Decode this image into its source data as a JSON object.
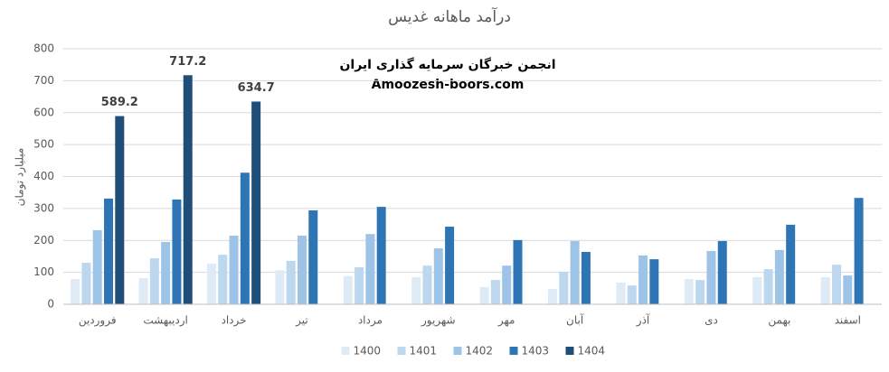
{
  "chart_data": {
    "type": "bar",
    "title": "درآمد ماهانه غدیس",
    "y_label": "میلیارد تومان",
    "annotations": [
      "انجمن خبرگان سرمایه گذاری ایران",
      "Amoozesh-boors.com"
    ],
    "categories": [
      "فروردین",
      "اردیبهشت",
      "خرداد",
      "تیر",
      "مرداد",
      "شهریور",
      "مهر",
      "آبان",
      "آذر",
      "دی",
      "بهمن",
      "اسفند"
    ],
    "series": [
      {
        "name": "1400",
        "color": "#deebf7",
        "values": [
          79,
          82,
          127,
          107,
          88,
          85,
          54,
          48,
          68,
          79,
          85,
          85
        ]
      },
      {
        "name": "1401",
        "color": "#bdd7ee",
        "values": [
          130,
          144,
          155,
          136,
          116,
          121,
          76,
          102,
          59,
          76,
          110,
          124
        ]
      },
      {
        "name": "1402",
        "color": "#9dc3e6",
        "values": [
          232,
          195,
          215,
          215,
          220,
          175,
          121,
          198,
          153,
          167,
          170,
          90
        ]
      },
      {
        "name": "1403",
        "color": "#2e75b6",
        "values": [
          331,
          328,
          412,
          294,
          305,
          243,
          201,
          164,
          141,
          198,
          249,
          333
        ]
      },
      {
        "name": "1404",
        "color": "#1f4e79",
        "data_labels": true,
        "values": [
          589.2,
          717.2,
          634.7,
          null,
          null,
          null,
          null,
          null,
          null,
          null,
          null,
          null
        ]
      }
    ],
    "ylim": [
      0,
      800
    ],
    "yticks": [
      0,
      100,
      200,
      300,
      400,
      500,
      600,
      700,
      800
    ],
    "grid": true,
    "legend": "bottom"
  }
}
